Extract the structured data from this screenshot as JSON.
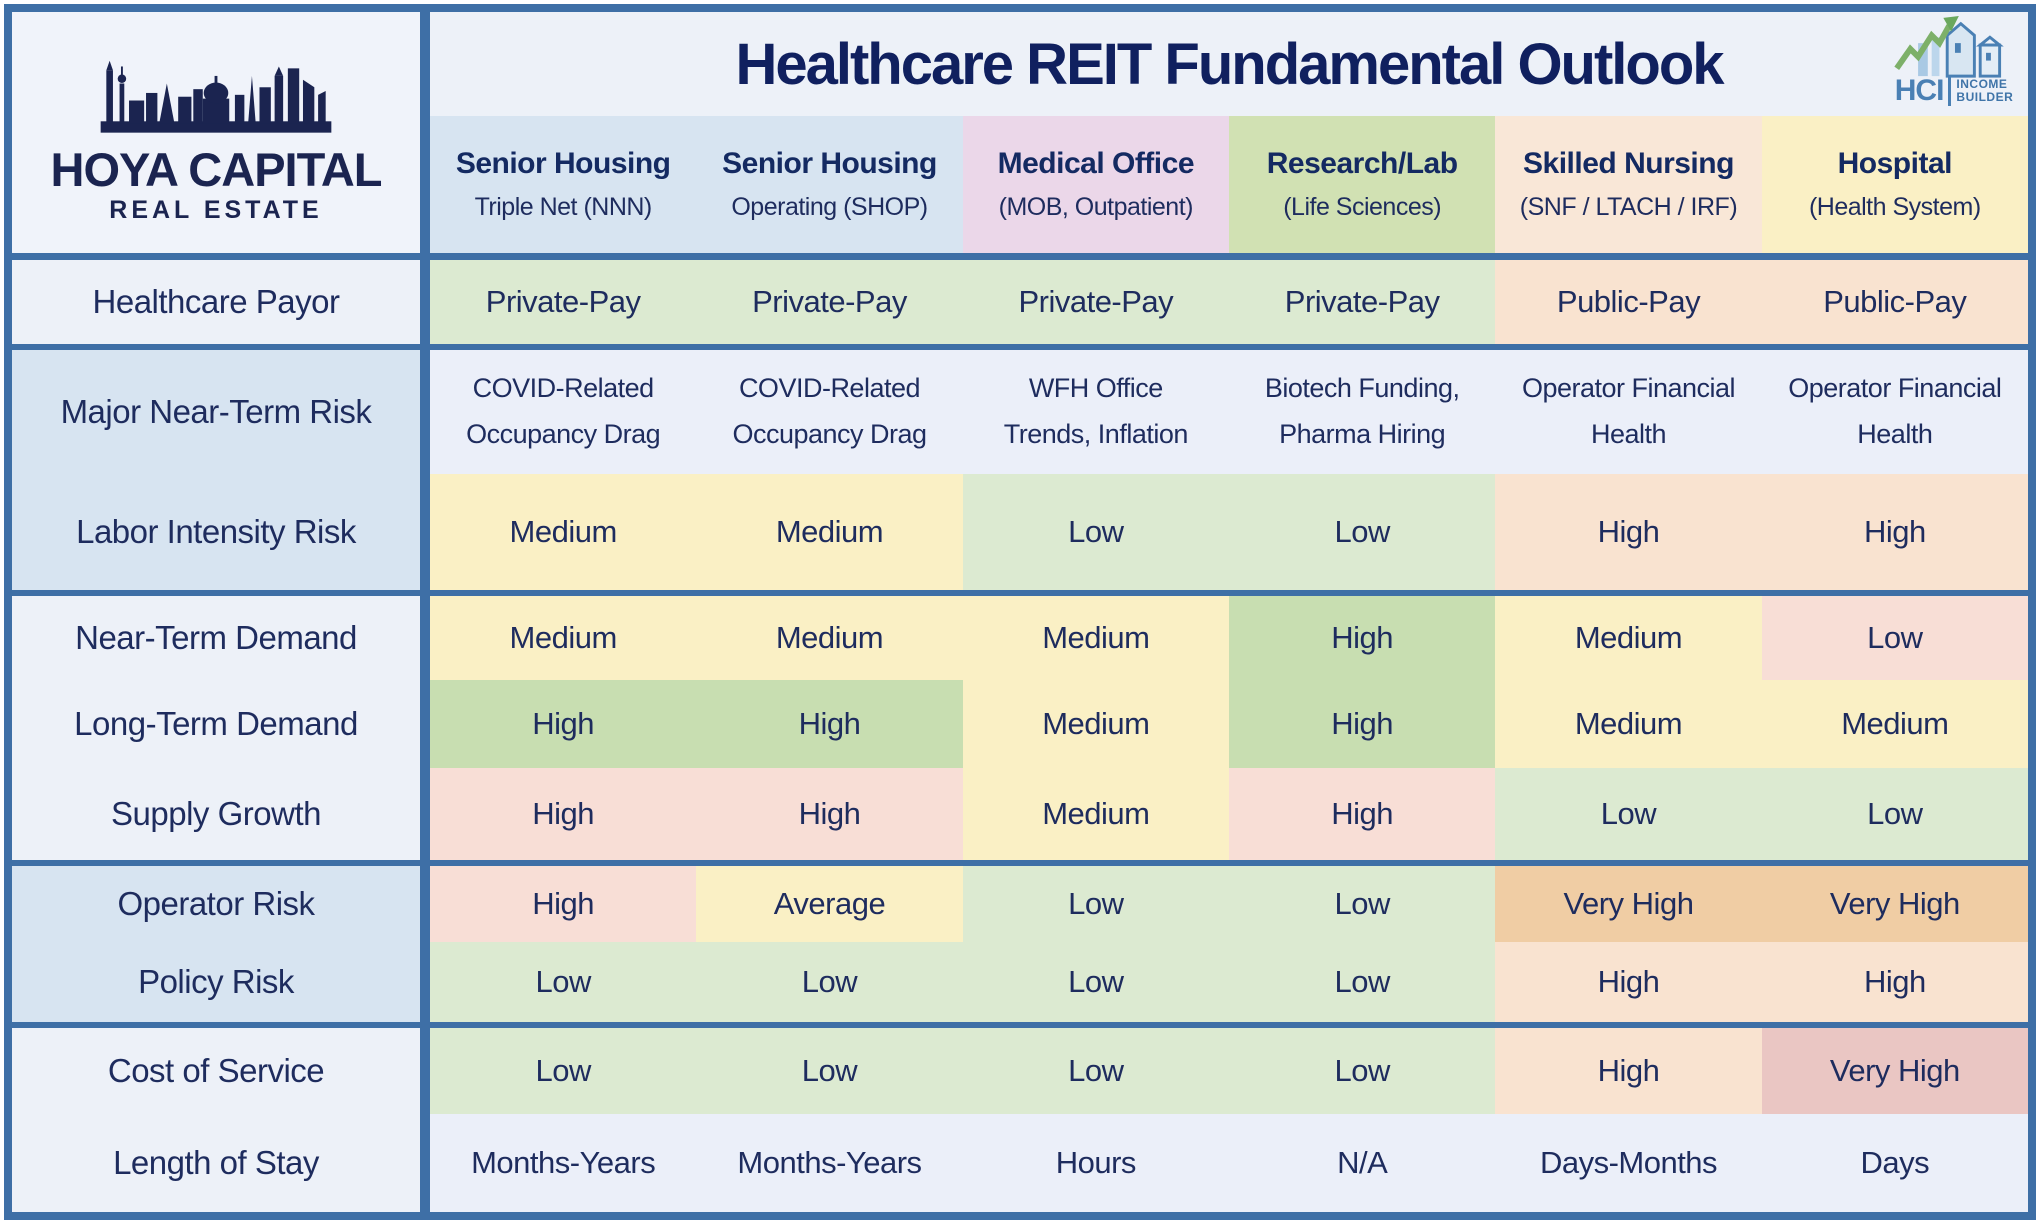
{
  "title": "Healthcare REIT Fundamental Outlook",
  "brand": {
    "line1": "HOYA CAPITAL",
    "line2": "REAL ESTATE"
  },
  "hci": {
    "abbr": "HCI",
    "word1": "INCOME",
    "word2": "BUILDER"
  },
  "palette": {
    "plain": "#ebeff9",
    "green": "#dcead1",
    "green_strong": "#c8deb1",
    "yellow": "#faf0c5",
    "peach": "#f9e3d0",
    "pink": "#f8ded6",
    "orange": "#f0cda4",
    "rose": "#eac6c3",
    "label_blue": "#d7e4f1",
    "label_white": "#edf1f8",
    "header_blue": "#d7e4f1",
    "header_pink": "#ebd7e9",
    "header_green": "#d1e1b3",
    "header_peach": "#f9e7d7",
    "header_yellow": "#faf0c5",
    "line_blue": "#3e6fa6",
    "navy_text": "#1e2c5e"
  },
  "chart_data": {
    "type": "table",
    "columns": [
      {
        "name": "Senior Housing",
        "sub": "Triple Net (NNN)",
        "color": "header_blue"
      },
      {
        "name": "Senior Housing",
        "sub": "Operating (SHOP)",
        "color": "header_blue"
      },
      {
        "name": "Medical Office",
        "sub": "(MOB, Outpatient)",
        "color": "header_pink"
      },
      {
        "name": "Research/Lab",
        "sub": "(Life Sciences)",
        "color": "header_green"
      },
      {
        "name": "Skilled Nursing",
        "sub": "(SNF / LTACH / IRF)",
        "color": "header_peach"
      },
      {
        "name": "Hospital",
        "sub": "(Health System)",
        "color": "header_yellow"
      }
    ],
    "rows": [
      {
        "label": "Healthcare Payor",
        "label_bg": "white",
        "group_start": false,
        "cells": [
          {
            "text": "Private-Pay",
            "bg": "green"
          },
          {
            "text": "Private-Pay",
            "bg": "green"
          },
          {
            "text": "Private-Pay",
            "bg": "green"
          },
          {
            "text": "Private-Pay",
            "bg": "green"
          },
          {
            "text": "Public-Pay",
            "bg": "peach"
          },
          {
            "text": "Public-Pay",
            "bg": "peach"
          }
        ]
      },
      {
        "label": "Major Near-Term Risk",
        "label_bg": "blue",
        "group_start": true,
        "cells": [
          {
            "text": "COVID-Related\nOccupancy Drag",
            "bg": "plain"
          },
          {
            "text": "COVID-Related\nOccupancy Drag",
            "bg": "plain"
          },
          {
            "text": "WFH Office\nTrends, Inflation",
            "bg": "plain"
          },
          {
            "text": "Biotech Funding,\nPharma Hiring",
            "bg": "plain"
          },
          {
            "text": "Operator Financial\nHealth",
            "bg": "plain"
          },
          {
            "text": "Operator Financial\nHealth",
            "bg": "plain"
          }
        ]
      },
      {
        "label": "Labor Intensity Risk",
        "label_bg": "blue",
        "group_start": false,
        "cells": [
          {
            "text": "Medium",
            "bg": "yellow"
          },
          {
            "text": "Medium",
            "bg": "yellow"
          },
          {
            "text": "Low",
            "bg": "green"
          },
          {
            "text": "Low",
            "bg": "green"
          },
          {
            "text": "High",
            "bg": "peach"
          },
          {
            "text": "High",
            "bg": "peach"
          }
        ]
      },
      {
        "label": "Near-Term Demand",
        "label_bg": "white",
        "group_start": true,
        "cells": [
          {
            "text": "Medium",
            "bg": "yellow"
          },
          {
            "text": "Medium",
            "bg": "yellow"
          },
          {
            "text": "Medium",
            "bg": "yellow"
          },
          {
            "text": "High",
            "bg": "green_strong"
          },
          {
            "text": "Medium",
            "bg": "yellow"
          },
          {
            "text": "Low",
            "bg": "pink"
          }
        ]
      },
      {
        "label": "Long-Term Demand",
        "label_bg": "white",
        "group_start": false,
        "cells": [
          {
            "text": "High",
            "bg": "green_strong"
          },
          {
            "text": "High",
            "bg": "green_strong"
          },
          {
            "text": "Medium",
            "bg": "yellow"
          },
          {
            "text": "High",
            "bg": "green_strong"
          },
          {
            "text": "Medium",
            "bg": "yellow"
          },
          {
            "text": "Medium",
            "bg": "yellow"
          }
        ]
      },
      {
        "label": "Supply Growth",
        "label_bg": "white",
        "group_start": false,
        "cells": [
          {
            "text": "High",
            "bg": "pink"
          },
          {
            "text": "High",
            "bg": "pink"
          },
          {
            "text": "Medium",
            "bg": "yellow"
          },
          {
            "text": "High",
            "bg": "pink"
          },
          {
            "text": "Low",
            "bg": "green"
          },
          {
            "text": "Low",
            "bg": "green"
          }
        ]
      },
      {
        "label": "Operator Risk",
        "label_bg": "blue",
        "group_start": true,
        "cells": [
          {
            "text": "High",
            "bg": "pink"
          },
          {
            "text": "Average",
            "bg": "yellow"
          },
          {
            "text": "Low",
            "bg": "green"
          },
          {
            "text": "Low",
            "bg": "green"
          },
          {
            "text": "Very High",
            "bg": "orange"
          },
          {
            "text": "Very High",
            "bg": "orange"
          }
        ]
      },
      {
        "label": "Policy Risk",
        "label_bg": "blue",
        "group_start": false,
        "cells": [
          {
            "text": "Low",
            "bg": "green"
          },
          {
            "text": "Low",
            "bg": "green"
          },
          {
            "text": "Low",
            "bg": "green"
          },
          {
            "text": "Low",
            "bg": "green"
          },
          {
            "text": "High",
            "bg": "peach"
          },
          {
            "text": "High",
            "bg": "peach"
          }
        ]
      },
      {
        "label": "Cost of Service",
        "label_bg": "white",
        "group_start": true,
        "cells": [
          {
            "text": "Low",
            "bg": "green"
          },
          {
            "text": "Low",
            "bg": "green"
          },
          {
            "text": "Low",
            "bg": "green"
          },
          {
            "text": "Low",
            "bg": "green"
          },
          {
            "text": "High",
            "bg": "peach"
          },
          {
            "text": "Very High",
            "bg": "rose"
          }
        ]
      },
      {
        "label": "Length of Stay",
        "label_bg": "white",
        "group_start": false,
        "cells": [
          {
            "text": "Months-Years",
            "bg": "plain"
          },
          {
            "text": "Months-Years",
            "bg": "plain"
          },
          {
            "text": "Hours",
            "bg": "plain"
          },
          {
            "text": "N/A",
            "bg": "plain"
          },
          {
            "text": "Days-Months",
            "bg": "plain"
          },
          {
            "text": "Days",
            "bg": "plain"
          }
        ]
      }
    ]
  }
}
